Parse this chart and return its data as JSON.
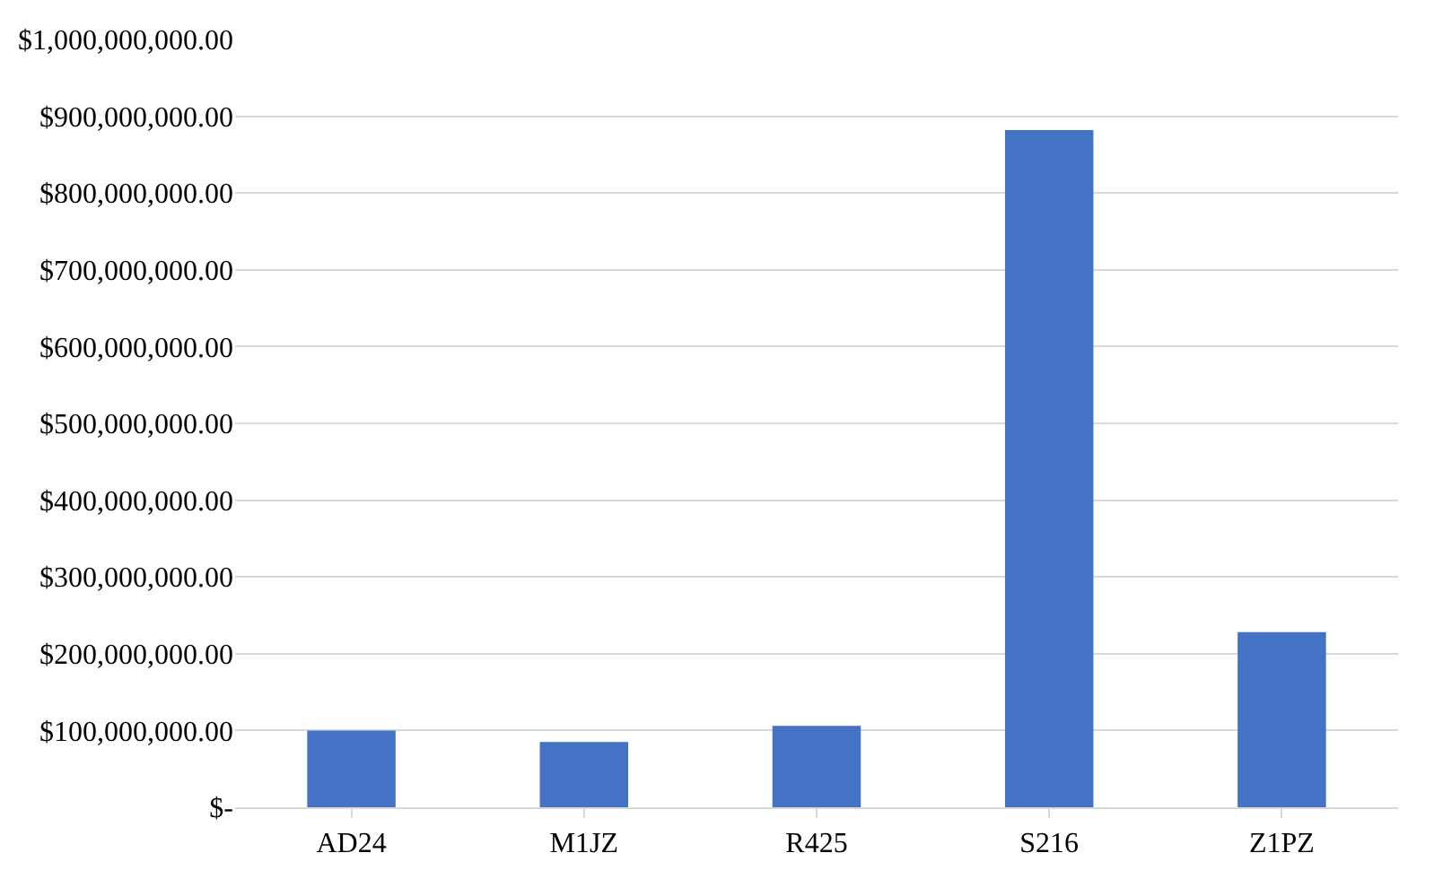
{
  "chart_data": {
    "type": "bar",
    "categories": [
      "AD24",
      "M1JZ",
      "R425",
      "S216",
      "Z1PZ"
    ],
    "values": [
      100000000,
      85000000,
      106000000,
      882000000,
      228000000
    ],
    "color": "#4472c4",
    "ylim": [
      0,
      1000000000
    ],
    "yticks": [
      {
        "value": 0,
        "label": "$-"
      },
      {
        "value": 100000000,
        "label": "$100,000,000.00"
      },
      {
        "value": 200000000,
        "label": "$200,000,000.00"
      },
      {
        "value": 300000000,
        "label": "$300,000,000.00"
      },
      {
        "value": 400000000,
        "label": "$400,000,000.00"
      },
      {
        "value": 500000000,
        "label": "$500,000,000.00"
      },
      {
        "value": 600000000,
        "label": "$600,000,000.00"
      },
      {
        "value": 700000000,
        "label": "$700,000,000.00"
      },
      {
        "value": 800000000,
        "label": "$800,000,000.00"
      },
      {
        "value": 900000000,
        "label": "$900,000,000.00"
      },
      {
        "value": 1000000000,
        "label": "$1,000,000,000.00"
      }
    ],
    "grid": "y"
  }
}
